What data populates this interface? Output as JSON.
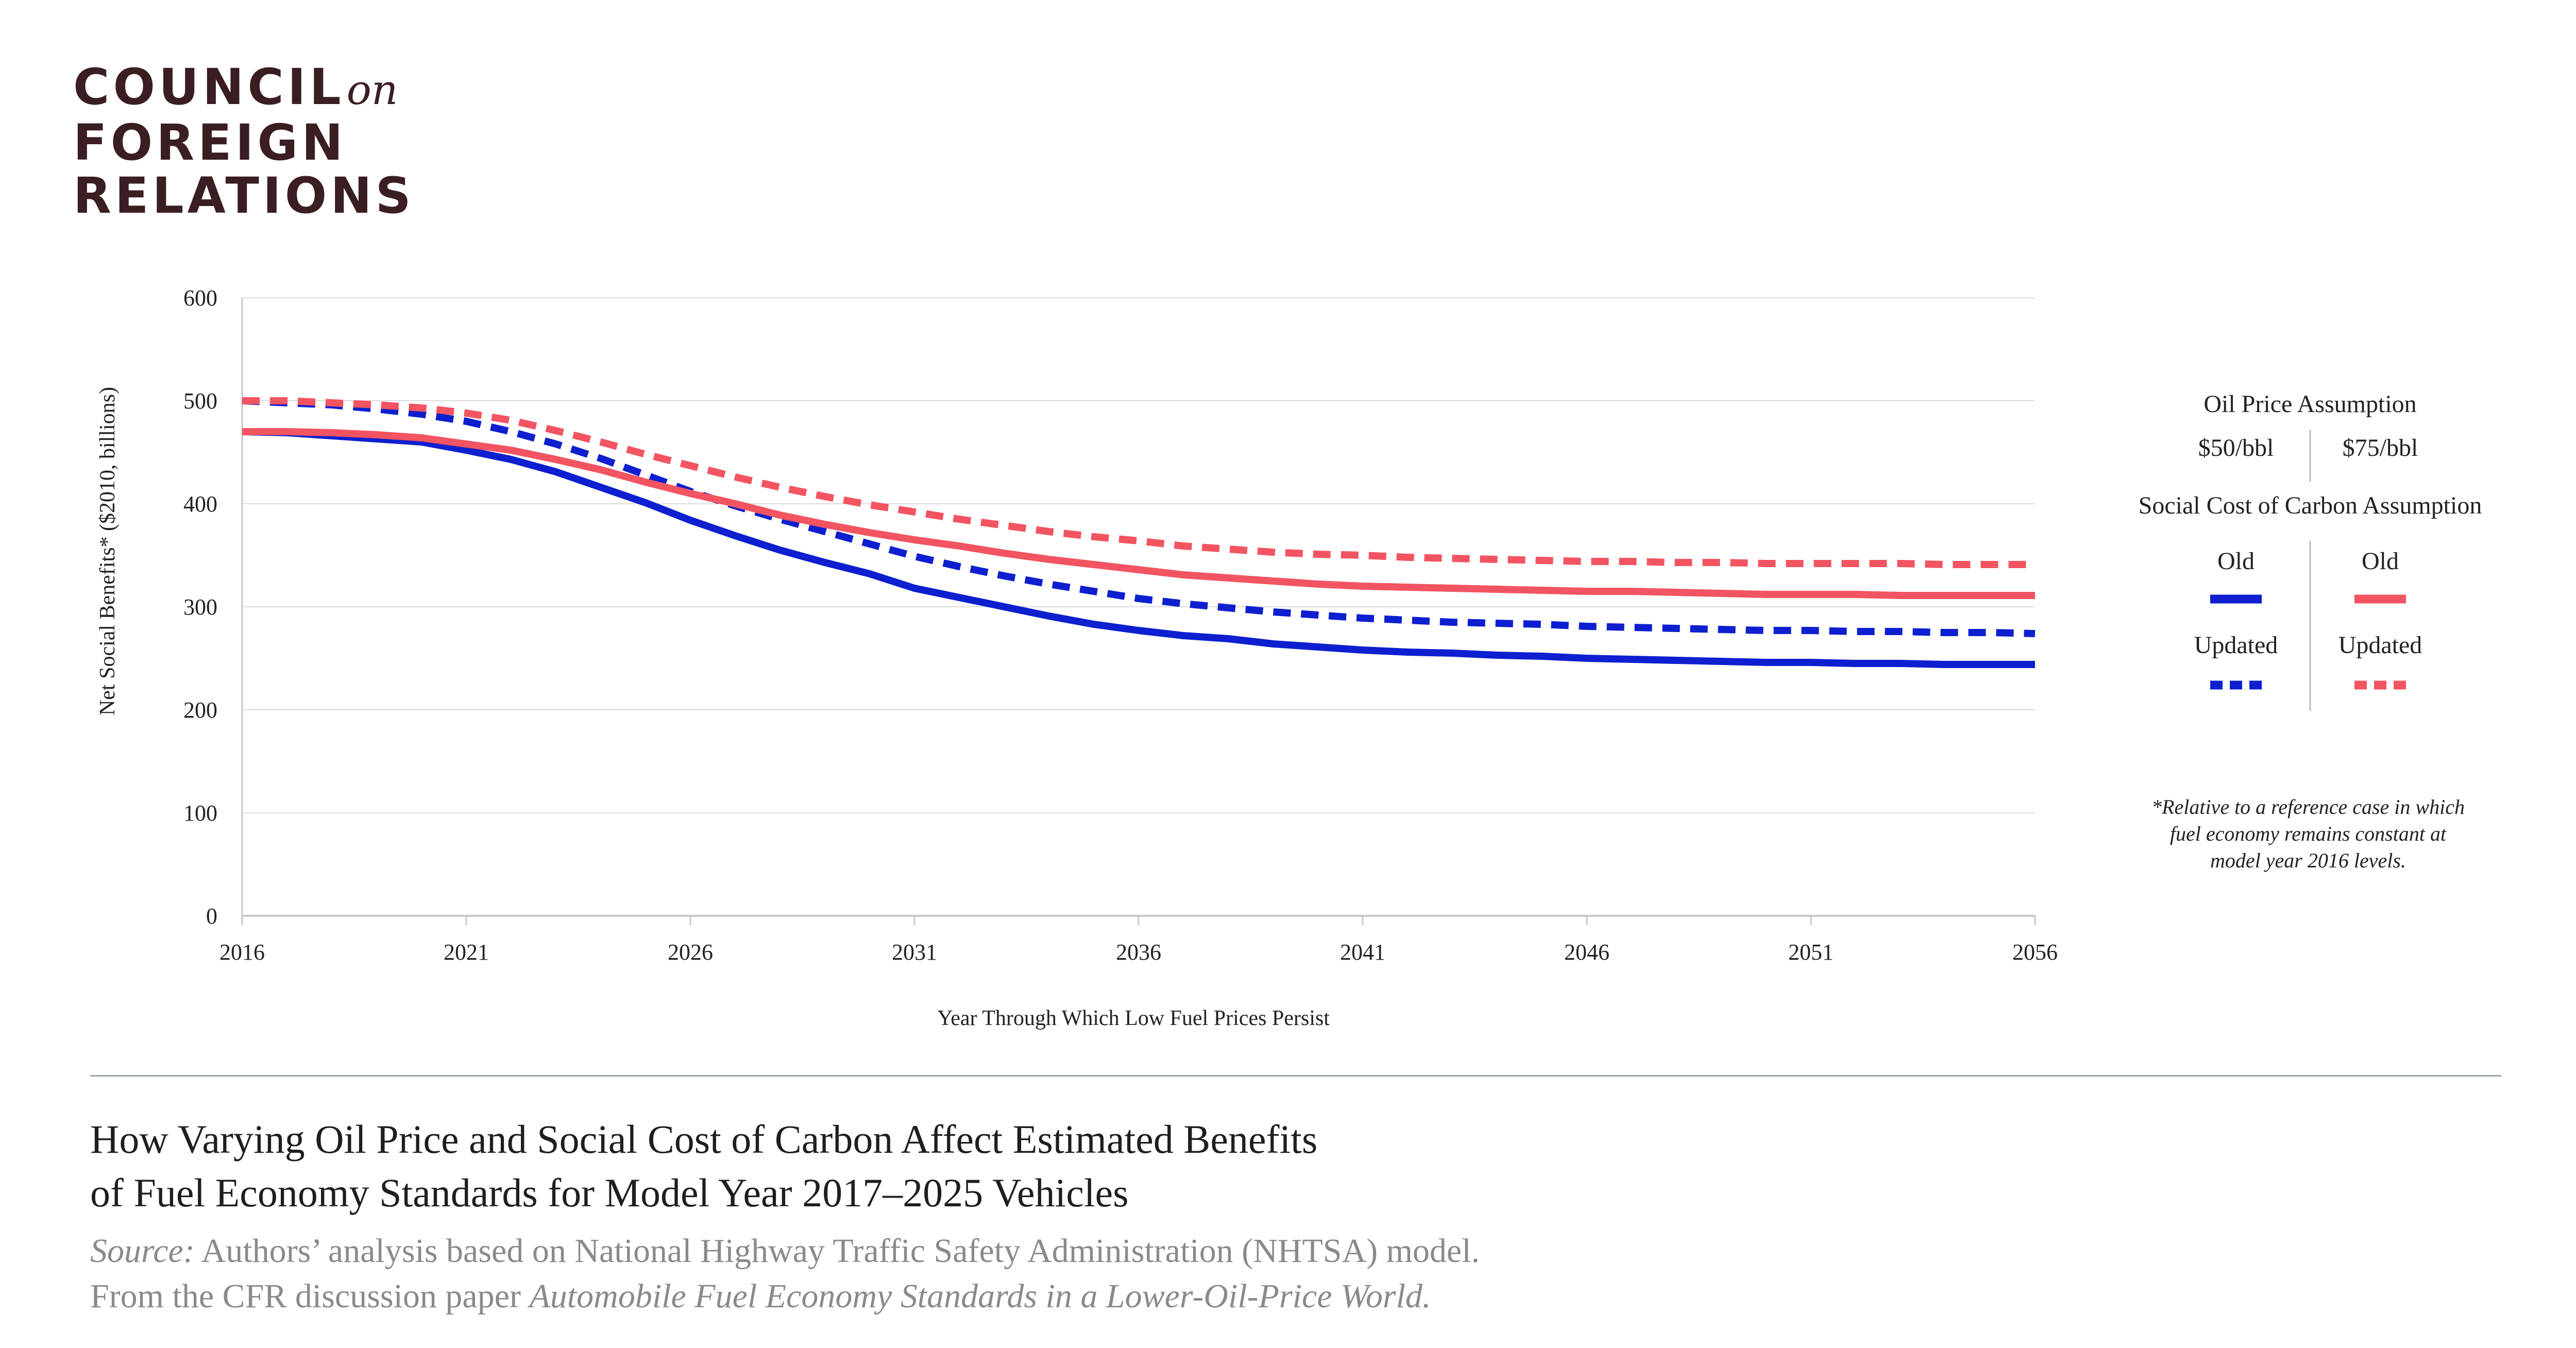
{
  "brand": {
    "line1": "COUNCIL",
    "line1_suffix": "on",
    "line2": "FOREIGN",
    "line3": "RELATIONS"
  },
  "caption": {
    "title_line1": "How Varying Oil Price and Social Cost of Carbon Affect Estimated Benefits",
    "title_line2": "of Fuel Economy Standards for Model Year 2017–2025 Vehicles",
    "source_label": "Source:",
    "source_text": "Authors’ analysis based on National Highway Traffic Safety Administration (NHTSA) model.",
    "from_text": "From the CFR discussion paper",
    "paper_title": "Automobile Fuel Economy Standards in a Lower-Oil-Price World."
  },
  "colors": {
    "blue": "#0d1fcf",
    "red": "#f25461",
    "grid": "#dcdcdc",
    "axis": "#c8c8c8",
    "text": "#222222"
  },
  "legend": {
    "oil_title": "Oil Price Assumption",
    "oil_50": "$50/bbl",
    "oil_75": "$75/bbl",
    "carbon_title": "Social Cost of Carbon Assumption",
    "old": "Old",
    "updated": "Updated",
    "footnote": [
      "*Relative to a reference case in which",
      "fuel economy remains constant at",
      "model year 2016 levels."
    ]
  },
  "chart_data": {
    "type": "line",
    "title": "",
    "xlabel": "Year Through Which Low Fuel Prices Persist",
    "ylabel": "Net Social Benefits* ($2010, billions)",
    "xlim": [
      2016,
      2056
    ],
    "ylim": [
      0,
      600
    ],
    "xticks": [
      2016,
      2021,
      2026,
      2031,
      2036,
      2041,
      2046,
      2051,
      2056
    ],
    "yticks": [
      0,
      100,
      200,
      300,
      400,
      500,
      600
    ],
    "grid": true,
    "legend_position": "right",
    "x": [
      2016,
      2017,
      2018,
      2019,
      2020,
      2021,
      2022,
      2023,
      2024,
      2025,
      2026,
      2027,
      2028,
      2029,
      2030,
      2031,
      2032,
      2033,
      2034,
      2035,
      2036,
      2037,
      2038,
      2039,
      2040,
      2041,
      2042,
      2043,
      2044,
      2045,
      2046,
      2047,
      2048,
      2049,
      2050,
      2051,
      2052,
      2053,
      2054,
      2055,
      2056
    ],
    "series": [
      {
        "key": "blue_old",
        "color": "blue",
        "dash": "solid",
        "values": [
          470,
          469,
          466,
          463,
          460,
          452,
          443,
          431,
          416,
          401,
          384,
          369,
          355,
          343,
          332,
          318,
          309,
          300,
          291,
          283,
          277,
          272,
          269,
          264,
          261,
          258,
          256,
          255,
          253,
          252,
          250,
          249,
          248,
          247,
          246,
          246,
          245,
          245,
          244,
          244,
          244
        ]
      },
      {
        "key": "blue_updated",
        "color": "blue",
        "dash": "dashed",
        "values": [
          500,
          498,
          496,
          492,
          487,
          480,
          470,
          458,
          444,
          428,
          412,
          398,
          385,
          373,
          361,
          349,
          339,
          330,
          322,
          315,
          308,
          303,
          299,
          295,
          292,
          289,
          287,
          285,
          284,
          283,
          281,
          280,
          279,
          278,
          277,
          277,
          276,
          276,
          275,
          275,
          274
        ]
      },
      {
        "key": "red_old",
        "color": "red",
        "dash": "solid",
        "values": [
          470,
          470,
          469,
          467,
          464,
          458,
          452,
          443,
          433,
          421,
          410,
          400,
          389,
          380,
          372,
          365,
          359,
          352,
          346,
          341,
          336,
          331,
          328,
          325,
          322,
          320,
          319,
          318,
          317,
          316,
          315,
          315,
          314,
          313,
          312,
          312,
          312,
          311,
          311,
          311,
          311
        ]
      },
      {
        "key": "red_updated",
        "color": "red",
        "dash": "dashed",
        "values": [
          500,
          500,
          498,
          496,
          493,
          488,
          481,
          471,
          460,
          448,
          437,
          426,
          416,
          407,
          399,
          392,
          385,
          379,
          373,
          368,
          364,
          359,
          356,
          353,
          351,
          350,
          348,
          347,
          346,
          345,
          344,
          344,
          343,
          343,
          342,
          342,
          342,
          342,
          341,
          341,
          341
        ]
      }
    ]
  }
}
